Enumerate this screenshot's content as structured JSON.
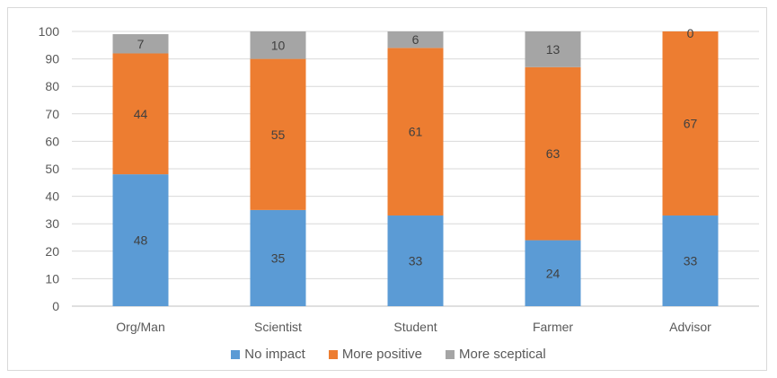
{
  "chart_data": {
    "type": "bar",
    "stacked": true,
    "categories": [
      "Org/Man",
      "Scientist",
      "Student",
      "Farmer",
      "Advisor"
    ],
    "series": [
      {
        "name": "No impact",
        "values": [
          48,
          35,
          33,
          24,
          33
        ],
        "color": "#5b9bd5"
      },
      {
        "name": "More positive",
        "values": [
          44,
          55,
          61,
          63,
          67
        ],
        "color": "#ed7d31"
      },
      {
        "name": "More sceptical",
        "values": [
          7,
          10,
          6,
          13,
          0
        ],
        "color": "#a5a5a5"
      }
    ],
    "ylim": [
      0,
      100
    ],
    "yticks": [
      0,
      10,
      20,
      30,
      40,
      50,
      60,
      70,
      80,
      90,
      100
    ],
    "grid": true,
    "legend_position": "bottom",
    "xlabel": "",
    "ylabel": "",
    "title": ""
  }
}
